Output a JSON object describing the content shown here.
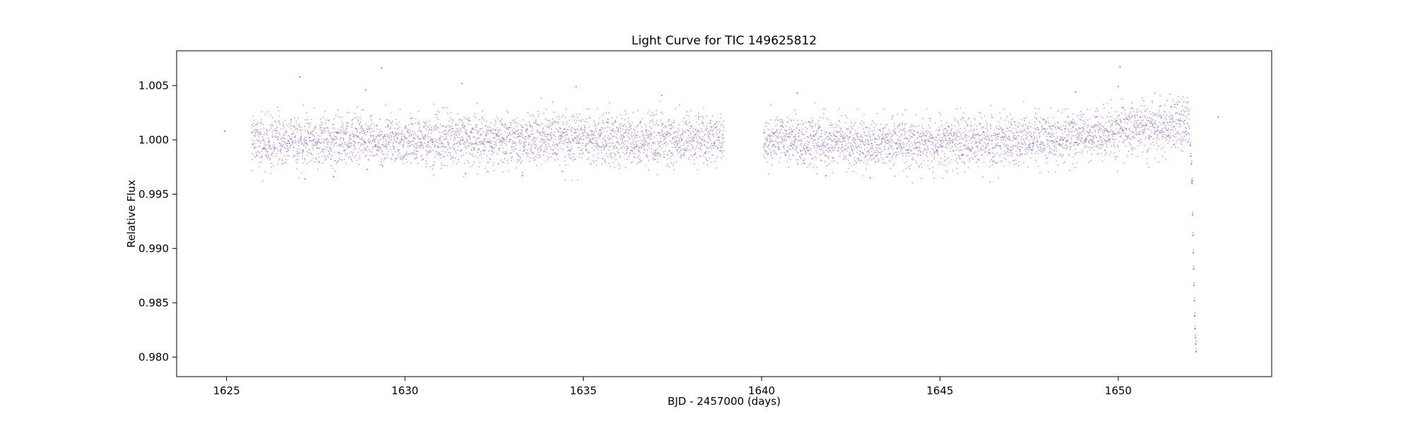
{
  "chart_data": {
    "type": "scatter",
    "title": "Light Curve for TIC 149625812",
    "xlabel": "BJD - 2457000 (days)",
    "ylabel": "Relative Flux",
    "xlim": [
      1623.6,
      1654.3
    ],
    "ylim": [
      0.9782,
      1.0082
    ],
    "x_ticks": [
      1625,
      1630,
      1635,
      1640,
      1645,
      1650
    ],
    "x_tick_labels": [
      "1625",
      "1630",
      "1635",
      "1640",
      "1645",
      "1650"
    ],
    "y_ticks": [
      0.98,
      0.985,
      0.99,
      0.995,
      1.0,
      1.005
    ],
    "y_tick_labels": [
      "0.980",
      "0.985",
      "0.990",
      "0.995",
      "1.000",
      "1.005"
    ],
    "grid": false,
    "legend": "none",
    "marker_color": "#9467bd",
    "series": [
      {
        "x_start": 1625.7,
        "x_end": 1638.95,
        "baseline_trend": [
          [
            1625.7,
            1.0
          ],
          [
            1627.5,
            0.99985
          ],
          [
            1631.0,
            1.00005
          ],
          [
            1635.0,
            1.00005
          ],
          [
            1638.95,
            1.0001
          ]
        ],
        "scatter_sigma": 0.00118
      },
      {
        "x_start": 1640.05,
        "x_end": 1652.0,
        "baseline_trend": [
          [
            1640.05,
            1.0
          ],
          [
            1643.0,
            0.9997
          ],
          [
            1646.0,
            0.99975
          ],
          [
            1648.5,
            1.0001
          ],
          [
            1650.0,
            1.0008
          ],
          [
            1652.0,
            1.0016
          ]
        ],
        "scatter_sigma": 0.00115
      }
    ],
    "egress_points": [
      [
        1652.02,
        0.9995
      ],
      [
        1652.03,
        0.9985
      ],
      [
        1652.05,
        0.9978
      ],
      [
        1652.06,
        0.9962
      ],
      [
        1652.07,
        0.996
      ],
      [
        1652.08,
        0.9931
      ],
      [
        1652.09,
        0.9912
      ],
      [
        1652.1,
        0.9896
      ],
      [
        1652.11,
        0.9881
      ],
      [
        1652.12,
        0.9866
      ],
      [
        1652.13,
        0.9852
      ],
      [
        1652.14,
        0.9838
      ],
      [
        1652.15,
        0.9826
      ],
      [
        1652.16,
        0.9818
      ],
      [
        1652.17,
        0.9812
      ],
      [
        1652.18,
        0.9805
      ]
    ],
    "outliers": [
      [
        1624.95,
        1.0008
      ],
      [
        1627.05,
        1.0058
      ],
      [
        1628.9,
        1.0046
      ],
      [
        1629.35,
        1.0066
      ],
      [
        1631.6,
        1.0052
      ],
      [
        1634.8,
        1.0049
      ],
      [
        1637.2,
        1.0041
      ],
      [
        1641.0,
        1.0043
      ],
      [
        1648.8,
        1.0044
      ],
      [
        1650.0,
        1.0049
      ],
      [
        1650.05,
        1.0067
      ],
      [
        1652.8,
        1.0021
      ],
      [
        1633.3,
        0.9967
      ],
      [
        1631.7,
        0.9969
      ],
      [
        1641.8,
        0.9967
      ],
      [
        1643.05,
        0.9965
      ],
      [
        1627.2,
        0.9964
      ],
      [
        1628.0,
        0.9966
      ]
    ]
  }
}
